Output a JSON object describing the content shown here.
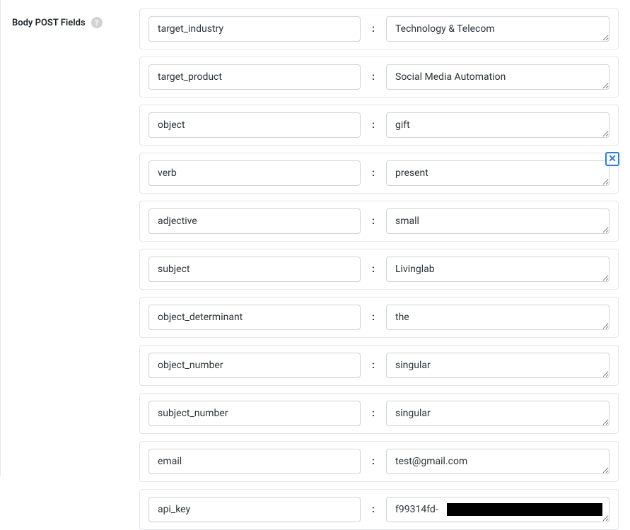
{
  "section": {
    "label": "Body POST Fields"
  },
  "fields": [
    {
      "key": "target_industry",
      "value": "Technology & Telecom",
      "closable": false
    },
    {
      "key": "target_product",
      "value": "Social Media Automation",
      "closable": false
    },
    {
      "key": "object",
      "value": "gift",
      "closable": false
    },
    {
      "key": "verb",
      "value": "present",
      "closable": true
    },
    {
      "key": "adjective",
      "value": "small",
      "closable": false
    },
    {
      "key": "subject",
      "value": "Livinglab",
      "closable": false
    },
    {
      "key": "object_determinant",
      "value": "the",
      "closable": false
    },
    {
      "key": "object_number",
      "value": "singular",
      "closable": false
    },
    {
      "key": "subject_number",
      "value": "singular",
      "closable": false
    },
    {
      "key": "email",
      "value": "test@gmail.com",
      "closable": false
    },
    {
      "key": "api_key",
      "value": "f99314fd-",
      "value_suffix_redacted": true,
      "closable": false
    }
  ],
  "colors": {
    "border": "#e4e6e9",
    "input_border": "#d0d3d8",
    "text": "#2c3338",
    "label_text": "#1d2327",
    "help_bg": "#d0d3d6",
    "close_border": "#2e7cd6",
    "background": "#ffffff",
    "redact": "#000000"
  }
}
